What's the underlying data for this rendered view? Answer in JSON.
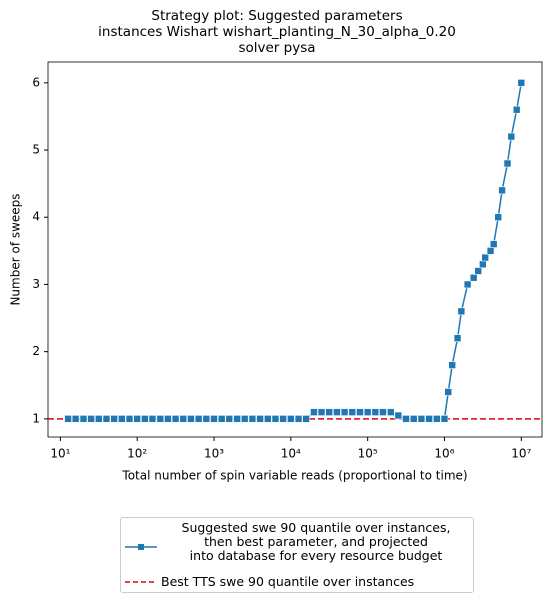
{
  "chart_data": {
    "type": "line",
    "title": "Strategy plot: Suggested parameters\n instances Wishart wishart_planting_N_30_alpha_0.20\nsolver pysa",
    "xlabel": "Total number of spin variable reads (proportional to time)",
    "ylabel": "Number of sweeps",
    "xscale": "log",
    "xlim": [
      6.9,
      18600000
    ],
    "ylim": [
      0.73,
      6.31
    ],
    "xticks": [
      {
        "value": 10,
        "label": "10¹"
      },
      {
        "value": 100,
        "label": "10²"
      },
      {
        "value": 1000,
        "label": "10³"
      },
      {
        "value": 10000,
        "label": "10⁴"
      },
      {
        "value": 100000,
        "label": "10⁵"
      },
      {
        "value": 1000000,
        "label": "10⁶"
      },
      {
        "value": 10000000,
        "label": "10⁷"
      }
    ],
    "yticks": [
      1,
      2,
      3,
      4,
      5,
      6
    ],
    "legend": "below",
    "series": [
      {
        "name": "Suggested swe 90 quantile over instances,\n then best parameter, and projected\n into database for every resource budget",
        "color": "#1f77b4",
        "marker": "square",
        "x": [
          12.6,
          15.8,
          20,
          25.1,
          31.6,
          39.8,
          50.1,
          63.1,
          79.4,
          100,
          126,
          158,
          200,
          251,
          316,
          398,
          501,
          631,
          794,
          1000,
          1260,
          1580,
          2000,
          2510,
          3160,
          3980,
          5010,
          6310,
          7940,
          10000,
          12600,
          15800,
          20000,
          25100,
          31600,
          39800,
          50100,
          63100,
          79400,
          100000,
          126000,
          158000,
          200000,
          251000,
          316000,
          398000,
          501000,
          631000,
          794000,
          1000000,
          1120000,
          1260000,
          1480000,
          1660000,
          2000000,
          2400000,
          2750000,
          3160000,
          3390000,
          3980000,
          4370000,
          5010000,
          5620000,
          6610000,
          7410000,
          8710000,
          10000000
        ],
        "values": [
          1,
          1,
          1,
          1,
          1,
          1,
          1,
          1,
          1,
          1,
          1,
          1,
          1,
          1,
          1,
          1,
          1,
          1,
          1,
          1,
          1,
          1,
          1,
          1,
          1,
          1,
          1,
          1,
          1,
          1,
          1,
          1,
          1.1,
          1.1,
          1.1,
          1.1,
          1.1,
          1.1,
          1.1,
          1.1,
          1.1,
          1.1,
          1.1,
          1.05,
          1,
          1,
          1,
          1,
          1,
          1,
          1.4,
          1.8,
          2.2,
          2.6,
          3.0,
          3.1,
          3.2,
          3.3,
          3.4,
          3.5,
          3.6,
          4.0,
          4.4,
          4.8,
          5.2,
          5.6,
          6.0
        ]
      }
    ],
    "reference_line": {
      "name": "Best TTS swe 90 quantile over instances",
      "value": 1,
      "color": "#e00000",
      "style": "dashed"
    }
  }
}
